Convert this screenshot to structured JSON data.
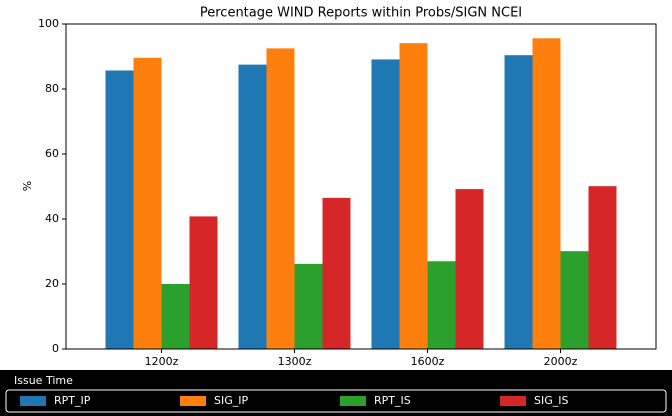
{
  "chart_data": {
    "type": "bar",
    "title": "Percentage WIND Reports within Probs/SIGN NCEI",
    "y_label": "%",
    "x_label": "Issue Time",
    "categories": [
      "1200z",
      "1300z",
      "1600z",
      "2000z"
    ],
    "series": [
      {
        "name": "RPT_IP",
        "color": "#1f77b4",
        "values": [
          85.7,
          87.5,
          89.1,
          90.4
        ]
      },
      {
        "name": "SIG_IP",
        "color": "#ff7f0e",
        "values": [
          89.6,
          92.5,
          94.1,
          95.6
        ]
      },
      {
        "name": "RPT_IS",
        "color": "#2ca02c",
        "values": [
          20.0,
          26.2,
          27.0,
          30.1
        ]
      },
      {
        "name": "SIG_IS",
        "color": "#d62728",
        "values": [
          40.8,
          46.5,
          49.2,
          50.1
        ]
      }
    ],
    "ylim": [
      0,
      100
    ],
    "yticks": [
      0,
      20,
      40,
      60,
      80,
      100
    ]
  }
}
